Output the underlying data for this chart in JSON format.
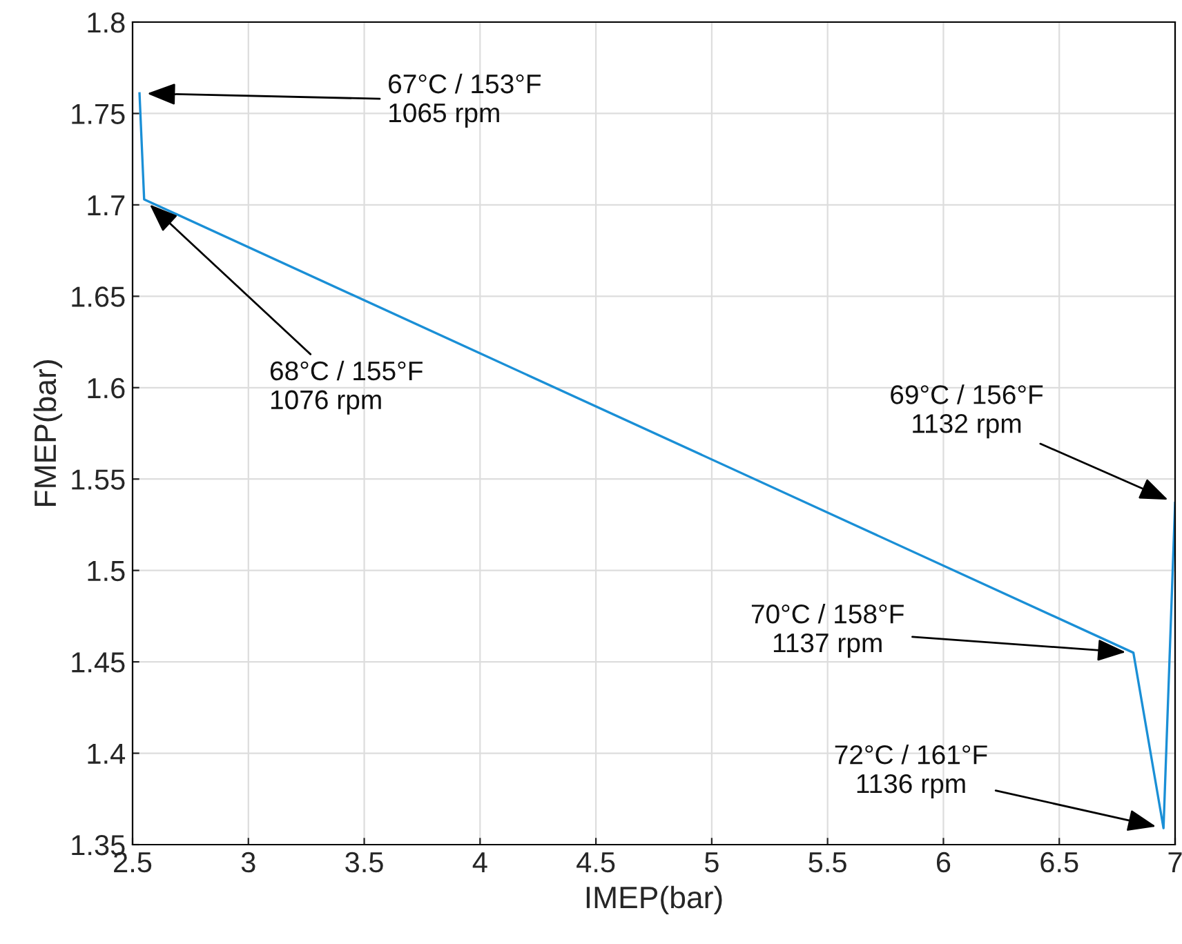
{
  "chart_data": {
    "type": "line",
    "xlabel": "IMEP(bar)",
    "ylabel": "FMEP(bar)",
    "x": [
      2.53,
      2.55,
      6.82,
      6.95,
      7.0
    ],
    "series": [
      {
        "color": "#1a8fd6",
        "values": [
          1.761,
          1.703,
          1.455,
          1.359,
          1.537
        ]
      }
    ],
    "xlim": [
      2.5,
      7
    ],
    "xticks": [
      2.5,
      3,
      3.5,
      4,
      4.5,
      5,
      5.5,
      6,
      6.5,
      7
    ],
    "ylim": [
      1.35,
      1.8
    ],
    "yticks": [
      1.35,
      1.4,
      1.45,
      1.5,
      1.55,
      1.6,
      1.65,
      1.7,
      1.75,
      1.8
    ],
    "grid": true,
    "marker": "none",
    "line_style": "solid",
    "legend": false,
    "annotations": [
      {
        "text": "67°C / 153°F\n1065 rpm",
        "x": 2.53,
        "y": 1.761
      },
      {
        "text": "68°C / 155°F\n1076 rpm",
        "x": 2.55,
        "y": 1.703
      },
      {
        "text": "69°C / 156°F\n1132 rpm",
        "x": 7.0,
        "y": 1.537
      },
      {
        "text": "70°C / 158°F\n1137 rpm",
        "x": 6.82,
        "y": 1.455
      },
      {
        "text": "72°C / 161°F\n1136 rpm",
        "x": 6.95,
        "y": 1.359
      }
    ]
  }
}
